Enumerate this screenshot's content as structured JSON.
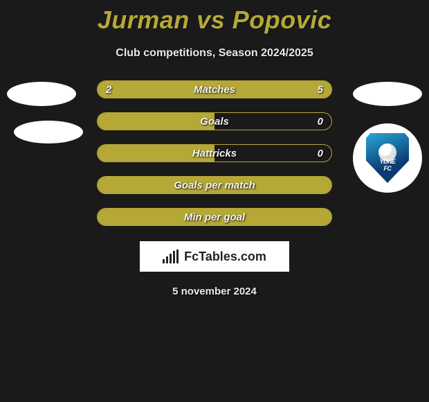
{
  "title": "Jurman vs Popovic",
  "subtitle": "Club competitions, Season 2024/2025",
  "date": "5 november 2024",
  "logo_text": "FcTables.com",
  "colors": {
    "accent": "#b5a836",
    "bg": "#1a1a1a",
    "text": "#e9e9e9"
  },
  "crest": {
    "label": "YDNE",
    "sublabel": "FC"
  },
  "bars": [
    {
      "label": "Matches",
      "left": "2",
      "right": "5",
      "left_pct": 28.6,
      "right_pct": 71.4
    },
    {
      "label": "Goals",
      "left": "",
      "right": "0",
      "left_pct": 50,
      "right_pct": 0
    },
    {
      "label": "Hattricks",
      "left": "",
      "right": "0",
      "left_pct": 50,
      "right_pct": 0
    },
    {
      "label": "Goals per match",
      "left": "",
      "right": "",
      "left_pct": 100,
      "right_pct": 0
    },
    {
      "label": "Min per goal",
      "left": "",
      "right": "",
      "left_pct": 100,
      "right_pct": 0
    }
  ]
}
